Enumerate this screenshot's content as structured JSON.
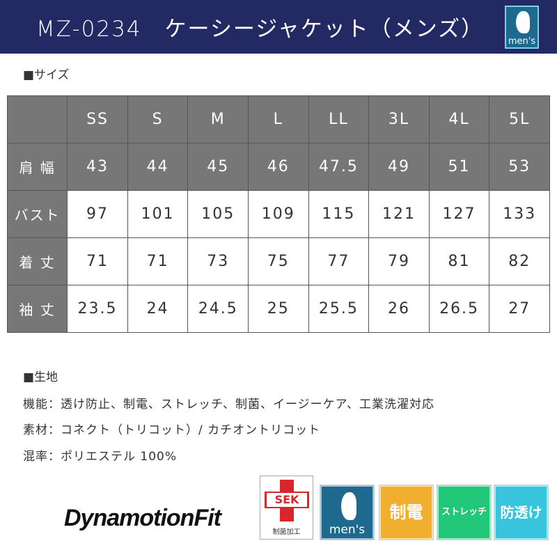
{
  "header": {
    "title": "MZ-0234　ケーシージャケット（メンズ）",
    "badge": "men's"
  },
  "size_section": {
    "heading": "■サイズ"
  },
  "size_table": {
    "columns": [
      "SS",
      "S",
      "M",
      "L",
      "LL",
      "3L",
      "4L",
      "5L"
    ],
    "rows": [
      {
        "label": "肩 幅",
        "values": [
          "43",
          "44",
          "45",
          "46",
          "47.5",
          "49",
          "51",
          "53"
        ]
      },
      {
        "label": "バスト",
        "values": [
          "97",
          "101",
          "105",
          "109",
          "115",
          "121",
          "127",
          "133"
        ]
      },
      {
        "label": "着 丈",
        "values": [
          "71",
          "71",
          "73",
          "75",
          "77",
          "79",
          "81",
          "82"
        ]
      },
      {
        "label": "袖 丈",
        "values": [
          "23.5",
          "24",
          "24.5",
          "25",
          "25.5",
          "26",
          "26.5",
          "27"
        ]
      }
    ]
  },
  "fabric_section": {
    "heading": "■生地",
    "lines": [
      "機能：透け防止、制電、ストレッチ、制菌、イージーケア、工業洗濯対応",
      "素材：コネクト（トリコット）/ カチオントリコット",
      "混率：ポリエステル 100%"
    ]
  },
  "brand": {
    "logo": "DynamotionFit"
  },
  "badges": {
    "sek": "SEK",
    "sek_sub": "制菌加工",
    "mens": "men's",
    "antistatic": "制電",
    "stretch": "ストレッチ",
    "seethrough": "防透け"
  },
  "colors": {
    "header": "#232a63",
    "table_header": "#777777",
    "mens": "#1e6a8e",
    "antistatic": "#f2ae2e",
    "stretch": "#22c77a",
    "seethrough": "#38c4dc"
  }
}
